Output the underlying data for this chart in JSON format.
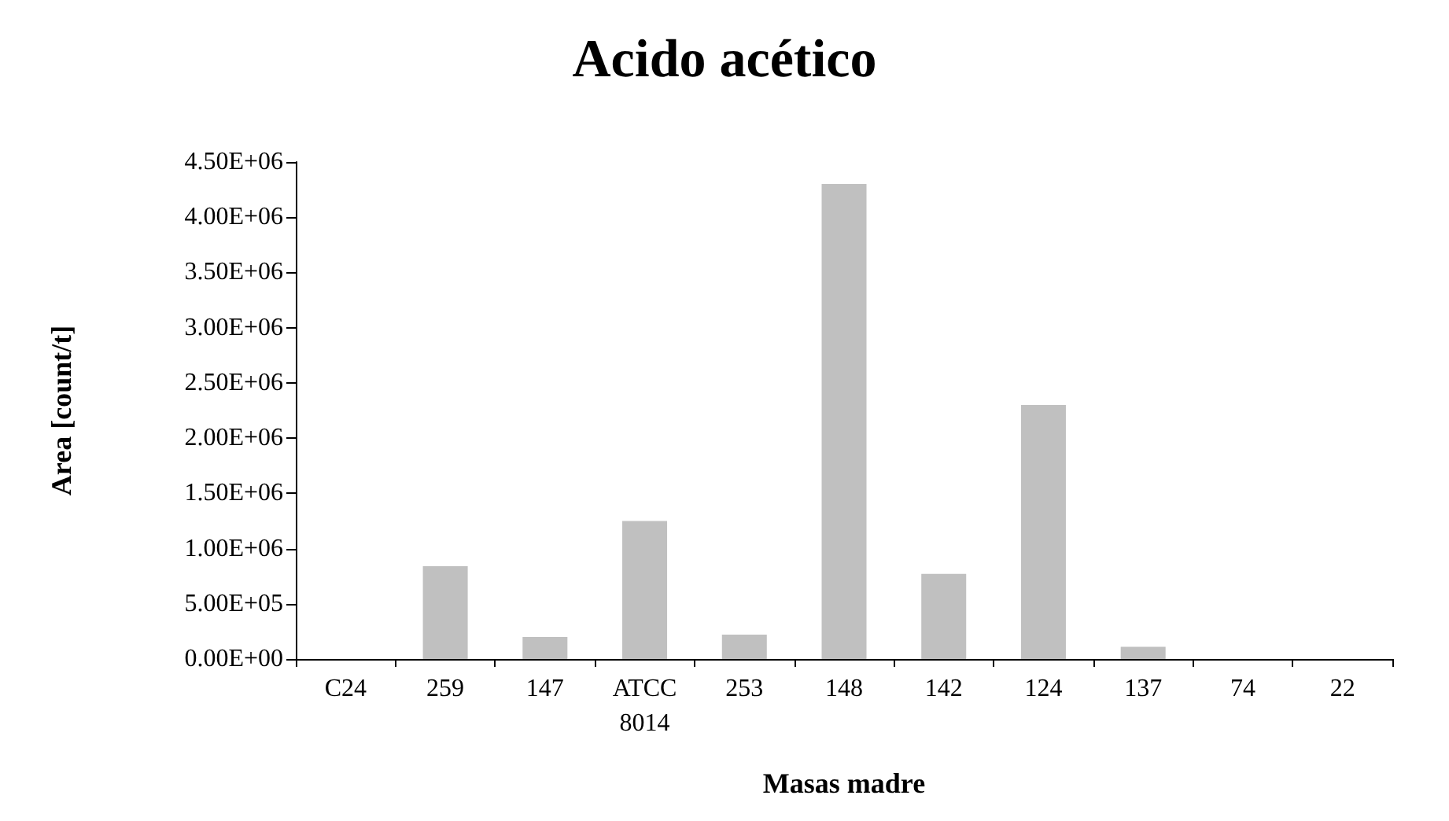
{
  "chart_data": {
    "type": "bar",
    "title": "Acido acético",
    "xlabel": "Masas madre",
    "ylabel": "Area [count/t]",
    "categories": [
      "C24",
      "259",
      "147",
      "ATCC 8014",
      "253",
      "148",
      "142",
      "124",
      "137",
      "74",
      "22"
    ],
    "values": [
      0,
      840000,
      200000,
      1250000,
      220000,
      4300000,
      770000,
      2300000,
      110000,
      0,
      0
    ],
    "color": "#c0c0c0",
    "ylim": [
      0,
      4500000
    ],
    "yticks": [
      {
        "value": 0,
        "label": "0.00E+00"
      },
      {
        "value": 500000,
        "label": "5.00E+05"
      },
      {
        "value": 1000000,
        "label": "1.00E+06"
      },
      {
        "value": 1500000,
        "label": "1.50E+06"
      },
      {
        "value": 2000000,
        "label": "2.00E+06"
      },
      {
        "value": 2500000,
        "label": "2.50E+06"
      },
      {
        "value": 3000000,
        "label": "3.00E+06"
      },
      {
        "value": 3500000,
        "label": "3.50E+06"
      },
      {
        "value": 4000000,
        "label": "4.00E+06"
      },
      {
        "value": 4500000,
        "label": "4.50E+06"
      }
    ],
    "grid": false
  }
}
